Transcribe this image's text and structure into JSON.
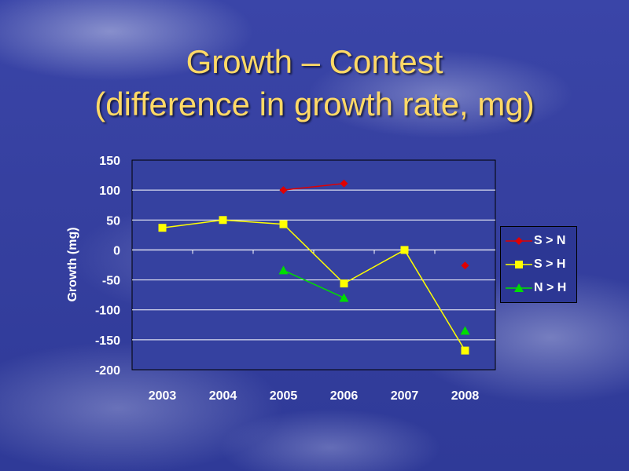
{
  "slide": {
    "title_line1": "Growth – Contest",
    "title_line2": "(difference in growth rate, mg)",
    "title_color": "#ffd966"
  },
  "chart_data": {
    "type": "line",
    "title": "",
    "xlabel": "",
    "ylabel": "Growth (mg)",
    "categories": [
      "2003",
      "2004",
      "2005",
      "2006",
      "2007",
      "2008"
    ],
    "ylim": [
      -200,
      150
    ],
    "yticks": [
      150,
      100,
      50,
      0,
      -50,
      -100,
      -150,
      -200
    ],
    "ytick_labels": [
      "150",
      "100",
      "50",
      "0",
      "-50",
      "-100",
      "-150",
      "-200"
    ],
    "grid": "horizontal",
    "legend_position": "right",
    "series": [
      {
        "name": "S > N",
        "color": "#e00000",
        "marker": "diamond",
        "values": [
          null,
          null,
          100,
          111,
          null,
          -26
        ]
      },
      {
        "name": "S > H",
        "color": "#ffff00",
        "marker": "square",
        "values": [
          37,
          50,
          43,
          -56,
          0,
          -168
        ]
      },
      {
        "name": "N > H",
        "color": "#00dd00",
        "marker": "triangle",
        "values": [
          null,
          null,
          -34,
          -80,
          null,
          -135
        ]
      }
    ]
  }
}
